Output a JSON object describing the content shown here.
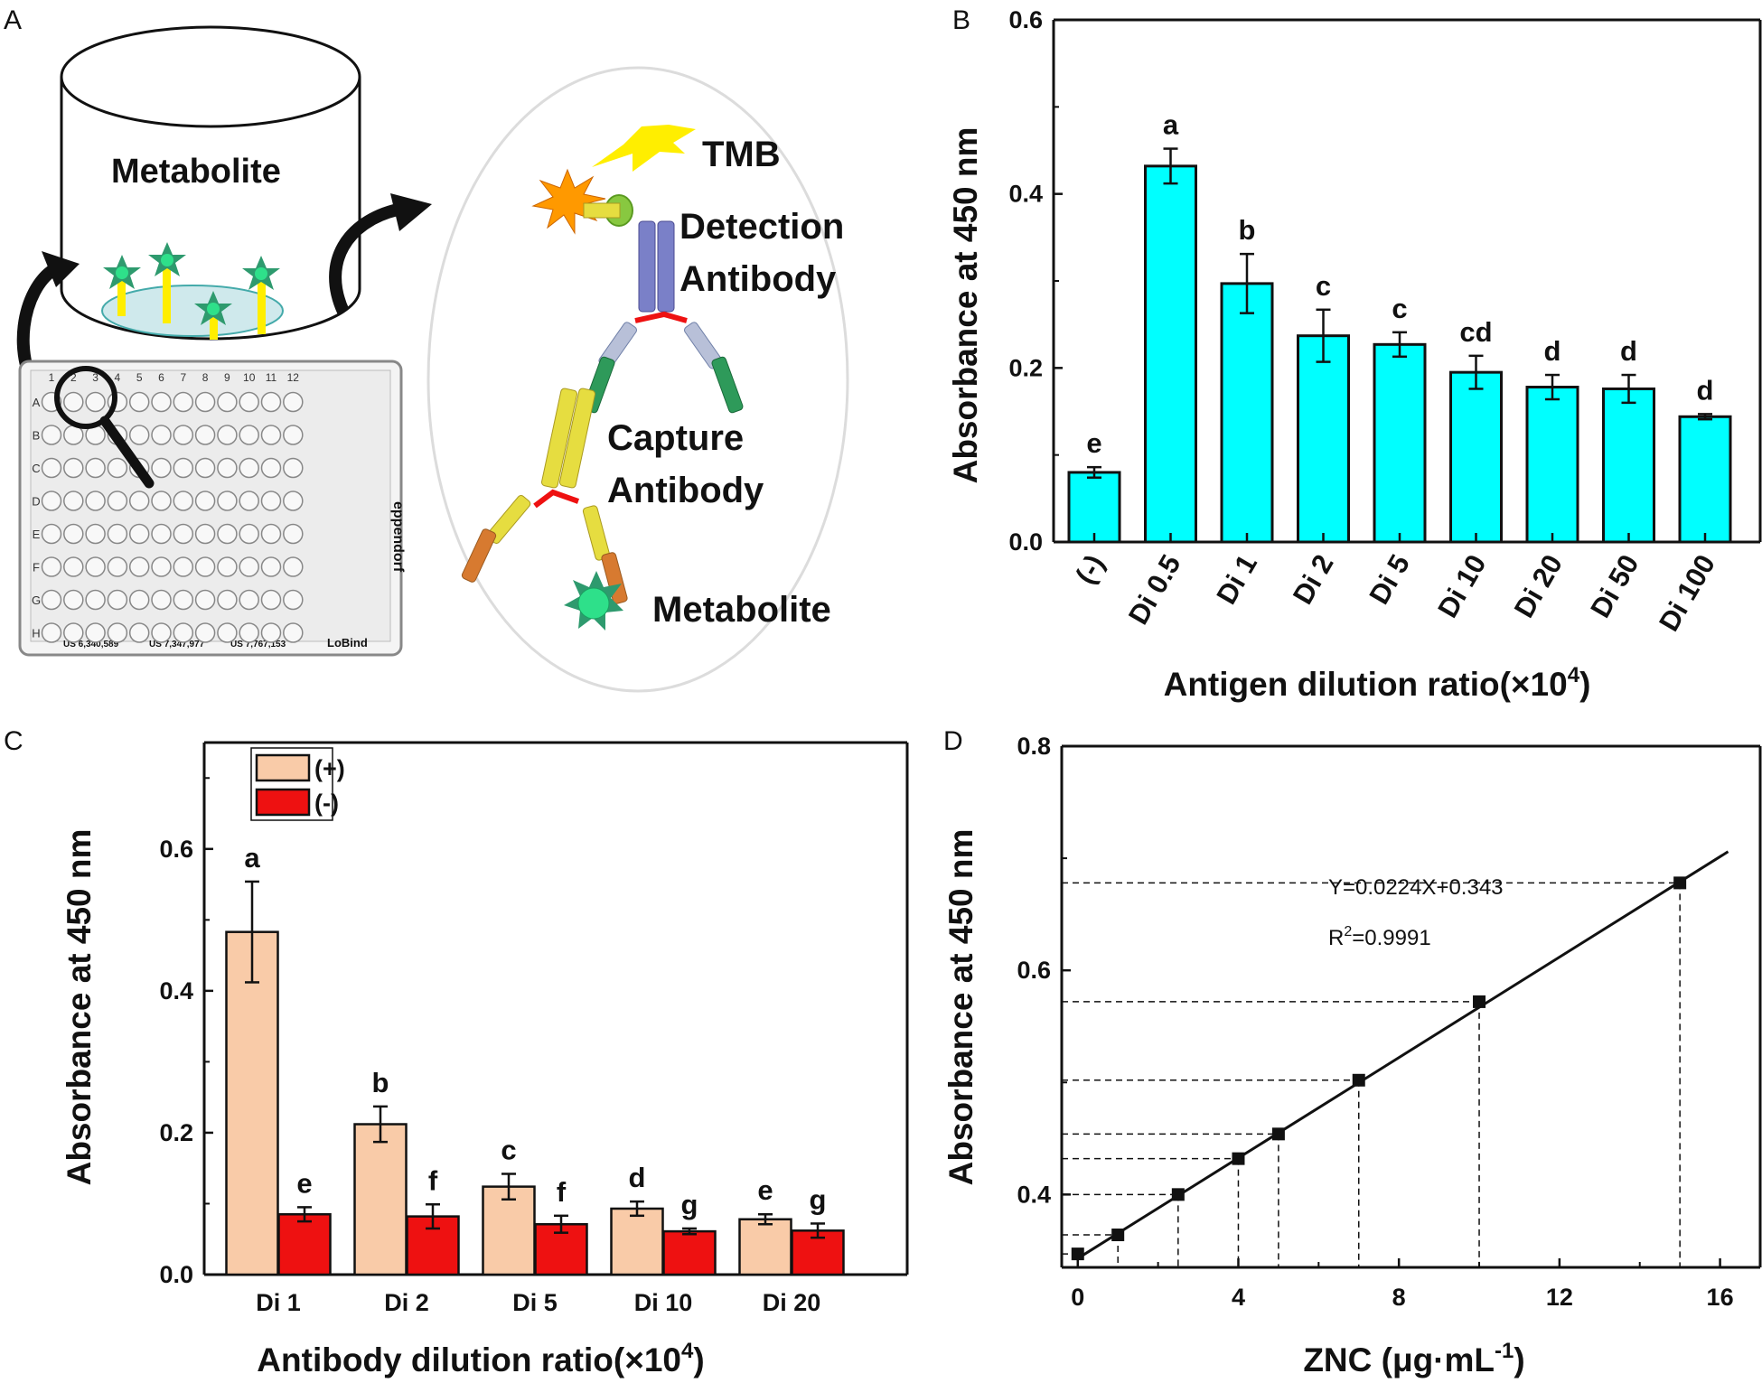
{
  "colors": {
    "cyan": "#00ffff",
    "peach": "#f9cba8",
    "red": "#ee1111",
    "black": "#111111"
  },
  "panel_labels": [
    "A",
    "B",
    "C",
    "D"
  ],
  "diagram": {
    "container_label": "Metabolite",
    "tmb_label": "TMB",
    "detection_label_1": "Detection",
    "detection_label_2": "Antibody",
    "capture_label_1": "Capture",
    "capture_label_2": "Antibody",
    "metabolite_label": "Metabolite",
    "plate_rows": [
      "A",
      "B",
      "C",
      "D",
      "E",
      "F",
      "G",
      "H"
    ],
    "plate_cols": [
      "1",
      "2",
      "3",
      "4",
      "5",
      "6",
      "7",
      "8",
      "9",
      "10",
      "11",
      "12"
    ],
    "plate_brand": "eppendorf",
    "plate_footer": [
      "US 6,340,589",
      "US 7,347,977",
      "US 7,767,153",
      "LoBind"
    ]
  },
  "chart_data": [
    {
      "panel": "B",
      "type": "bar",
      "categories": [
        "(-)",
        "Di 0.5",
        "Di 1",
        "Di 2",
        "Di 5",
        "Di 10",
        "Di 20",
        "Di 50",
        "Di 100"
      ],
      "values": [
        0.08,
        0.432,
        0.297,
        0.237,
        0.227,
        0.195,
        0.178,
        0.176,
        0.144
      ],
      "errors": [
        0.006,
        0.02,
        0.034,
        0.03,
        0.014,
        0.019,
        0.014,
        0.016,
        0.003
      ],
      "letters": [
        "e",
        "a",
        "b",
        "c",
        "c",
        "cd",
        "d",
        "d",
        "d"
      ],
      "xlabel_main": "Antigen dilution ratio(×10",
      "xlabel_exp": "4",
      "xlabel_end": ")",
      "ylabel": "Absorbance at 450 nm",
      "ylim": [
        0,
        0.6
      ],
      "yticks": [
        "0.0",
        "0.2",
        "0.4",
        "0.6"
      ]
    },
    {
      "panel": "C",
      "type": "bar",
      "categories": [
        "Di 1",
        "Di 2",
        "Di 5",
        "Di 10",
        "Di 20"
      ],
      "series": [
        {
          "name": "(+)",
          "values": [
            0.483,
            0.212,
            0.124,
            0.093,
            0.078
          ],
          "errors": [
            0.071,
            0.025,
            0.018,
            0.01,
            0.007
          ],
          "letters": [
            "a",
            "b",
            "c",
            "d",
            "e"
          ]
        },
        {
          "name": "(-)",
          "values": [
            0.085,
            0.082,
            0.071,
            0.061,
            0.062
          ],
          "errors": [
            0.01,
            0.017,
            0.012,
            0.004,
            0.01
          ],
          "letters": [
            "e",
            "f",
            "f",
            "g",
            "g"
          ]
        }
      ],
      "xlabel_main": "Antibody dilution ratio(×10",
      "xlabel_exp": "4",
      "xlabel_end": ")",
      "ylabel": "Absorbance at 450 nm",
      "ylim": [
        0,
        0.75
      ],
      "yticks": [
        "0.0",
        "0.2",
        "0.4",
        "0.6"
      ]
    },
    {
      "panel": "D",
      "type": "scatter",
      "x": [
        0,
        1,
        2.5,
        4,
        5,
        7,
        10,
        15
      ],
      "y": [
        0.347,
        0.364,
        0.4,
        0.432,
        0.454,
        0.502,
        0.572,
        0.678
      ],
      "fit": {
        "slope": 0.0224,
        "intercept": 0.343,
        "x_range": [
          0,
          16.2
        ]
      },
      "equation": "Y=0.0224X+0.343",
      "r2_prefix": "R",
      "r2_exp": "2",
      "r2_value": "=0.9991",
      "xlabel_main": "ZNC (μg·mL",
      "xlabel_exp": "-1",
      "xlabel_end": ")",
      "ylabel": "Absorbance at 450 nm",
      "xlim": [
        -0.4,
        17
      ],
      "ylim": [
        0.335,
        0.8
      ],
      "xticks": [
        "0",
        "4",
        "8",
        "12",
        "16"
      ],
      "yticks": [
        "0.4",
        "0.6",
        "0.8"
      ]
    }
  ]
}
